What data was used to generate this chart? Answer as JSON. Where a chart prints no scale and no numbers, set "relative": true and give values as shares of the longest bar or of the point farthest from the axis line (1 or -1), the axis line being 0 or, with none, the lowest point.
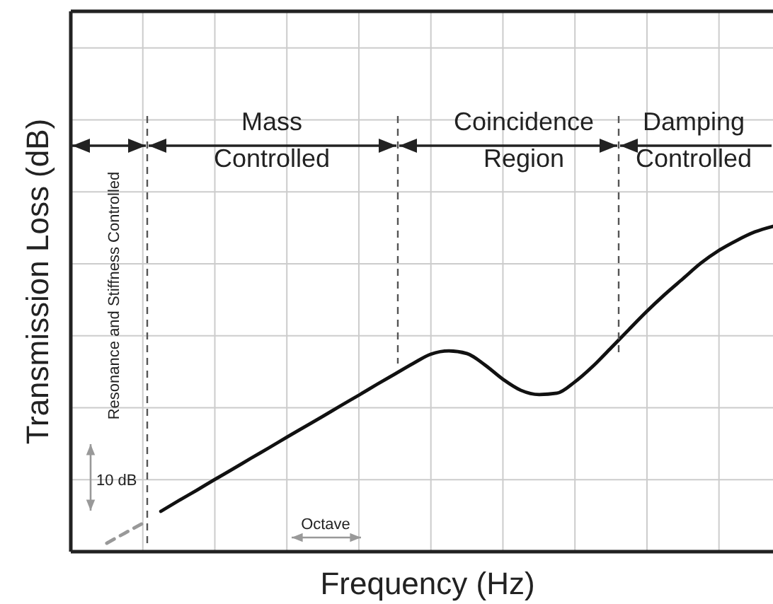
{
  "chart_data": {
    "type": "line",
    "relative": true,
    "xlabel": "Frequency (Hz)",
    "ylabel": "Transmission Loss (dB)",
    "grid": true,
    "categories": [
      null,
      null,
      null,
      null,
      null,
      null,
      null,
      null,
      null,
      null,
      null,
      null,
      null,
      null,
      null,
      null,
      null,
      null,
      null,
      null,
      null,
      null,
      null,
      null,
      null,
      null,
      null,
      null,
      null,
      null,
      null,
      null,
      null,
      null,
      null,
      null,
      null,
      null,
      null,
      null
    ],
    "series": [
      {
        "color": "#999999",
        "line_style": "dashed",
        "values": [
          null,
          null,
          0.026,
          0.057,
          0.087,
          null,
          null,
          null,
          null,
          null,
          null,
          null,
          null,
          null,
          null,
          null,
          null,
          null,
          null,
          null,
          null,
          null,
          null,
          null,
          null,
          null,
          null,
          null,
          null,
          null,
          null,
          null,
          null,
          null,
          null,
          null,
          null,
          null,
          null,
          null
        ]
      },
      {
        "color": "#111111",
        "line_style": "solid",
        "values": [
          null,
          null,
          null,
          null,
          null,
          0.124,
          0.157,
          0.189,
          0.222,
          0.254,
          0.287,
          0.319,
          0.352,
          0.384,
          0.416,
          0.449,
          0.481,
          0.514,
          0.546,
          0.578,
          0.607,
          0.617,
          0.609,
          0.574,
          0.53,
          0.496,
          0.483,
          0.487,
          0.522,
          0.57,
          0.626,
          0.683,
          0.739,
          0.791,
          0.839,
          0.887,
          0.926,
          0.957,
          0.983,
          1.0
        ]
      }
    ],
    "annotations": [
      "Resonance and Stiffness Controlled",
      "Mass\nControlled",
      "Coincidence\nRegion",
      "Damping\nControlled",
      "10 dB",
      "Octave"
    ]
  }
}
